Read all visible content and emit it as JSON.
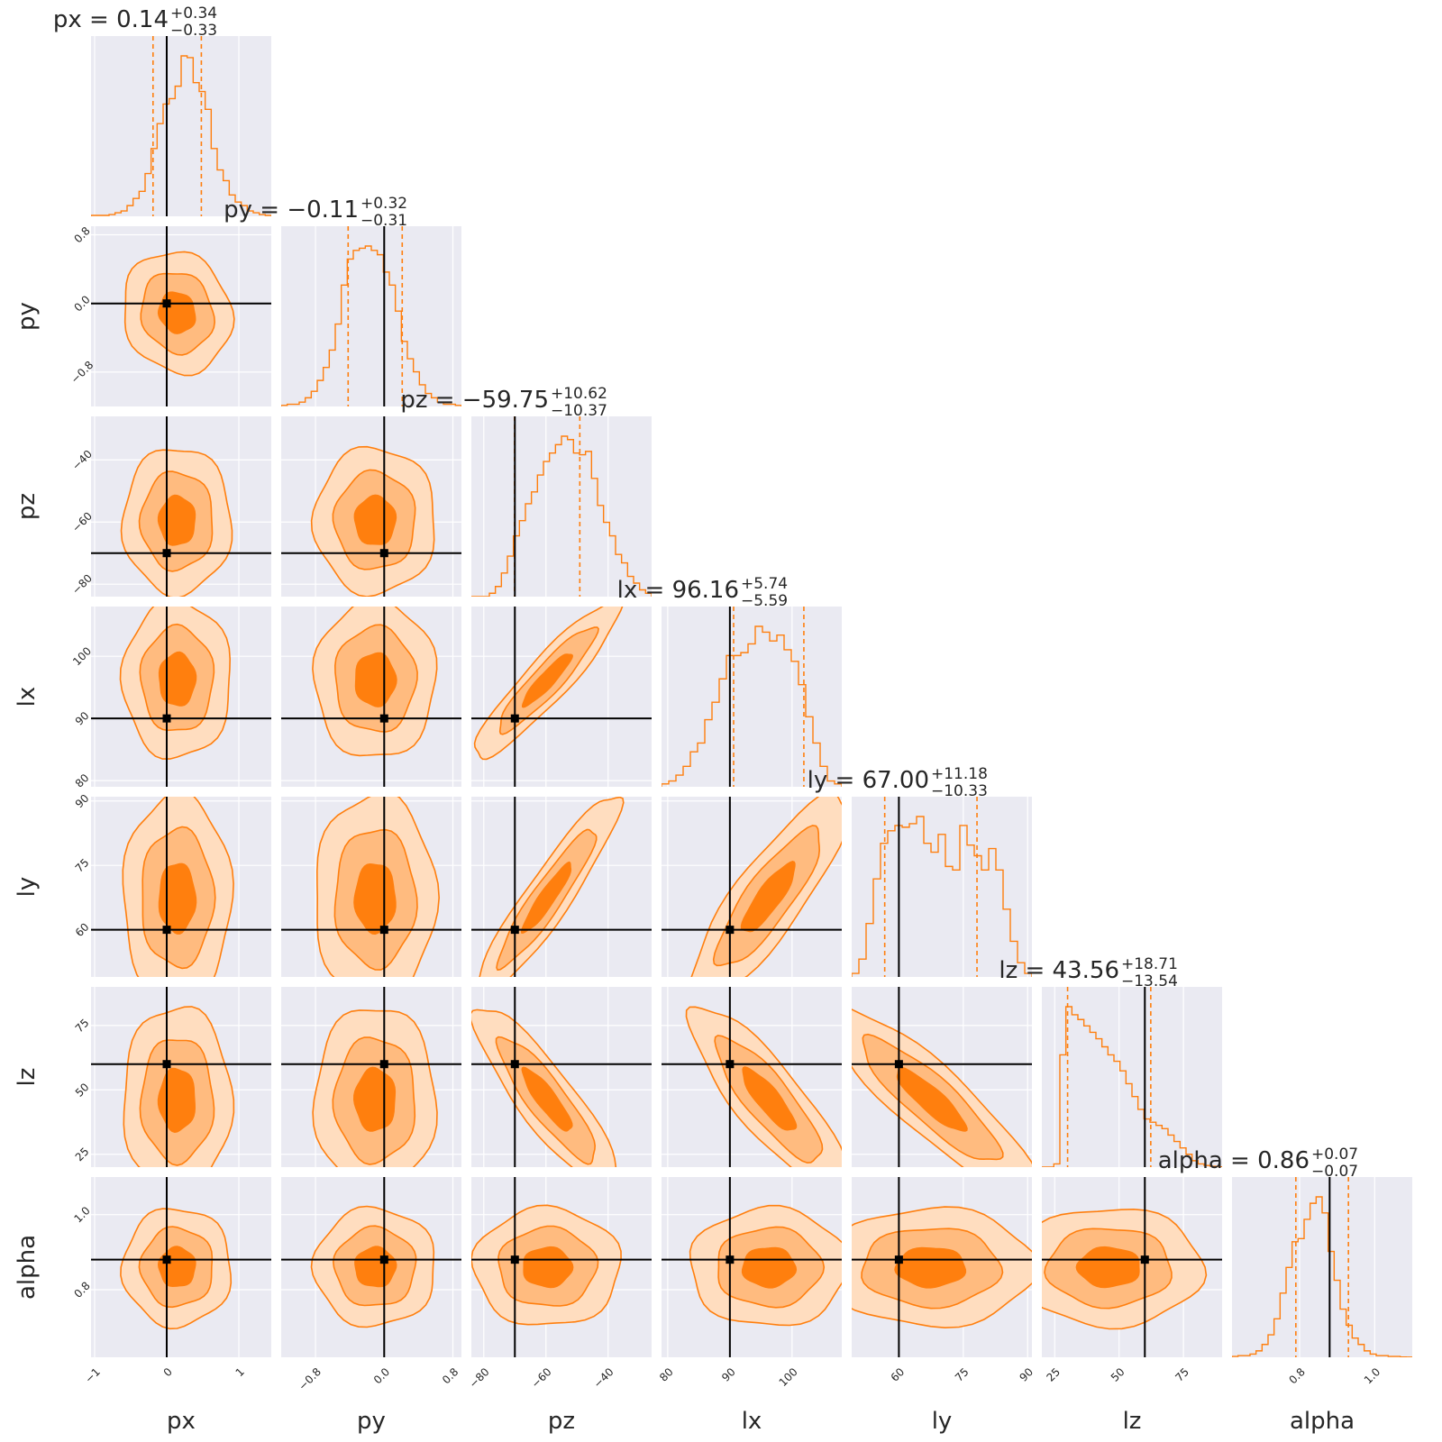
{
  "chart_data": {
    "type": "corner",
    "parameters": [
      "px",
      "py",
      "pz",
      "lx",
      "ly",
      "lz",
      "alpha"
    ],
    "ranges": {
      "px": [
        -1.05,
        1.45
      ],
      "py": [
        -1.2,
        0.9
      ],
      "pz": [
        -84,
        -26
      ],
      "lx": [
        79,
        108
      ],
      "ly": [
        49,
        91
      ],
      "lz": [
        20,
        90
      ],
      "alpha": [
        0.62,
        1.1
      ]
    },
    "truths": {
      "px": 0.0,
      "py": 0.0,
      "pz": -70,
      "lx": 90,
      "ly": 60,
      "lz": 60,
      "alpha": 0.88
    },
    "titles": [
      {
        "param": "px",
        "main": "px = 0.14",
        "plus": "+0.34",
        "minus": "−0.33"
      },
      {
        "param": "py",
        "main": "py = −0.11",
        "plus": "+0.32",
        "minus": "−0.31"
      },
      {
        "param": "pz",
        "main": "pz = −59.75",
        "plus": "+10.62",
        "minus": "−10.37"
      },
      {
        "param": "lx",
        "main": "lx = 96.16",
        "plus": "+5.74",
        "minus": "−5.59"
      },
      {
        "param": "ly",
        "main": "ly = 67.00",
        "plus": "+11.18",
        "minus": "−10.33"
      },
      {
        "param": "lz",
        "main": "lz = 43.56",
        "plus": "+18.71",
        "minus": "−13.54"
      },
      {
        "param": "alpha",
        "main": "alpha = 0.86",
        "plus": "+0.07",
        "minus": "−0.07"
      }
    ],
    "quantiles": {
      "px": [
        -0.19,
        0.48
      ],
      "py": [
        -0.42,
        0.21
      ],
      "pz": [
        -70.1,
        -49.1
      ],
      "lx": [
        90.6,
        101.9
      ],
      "ly": [
        56.7,
        78.2
      ],
      "lz": [
        30.0,
        62.3
      ],
      "alpha": [
        0.79,
        0.93
      ]
    },
    "histograms": {
      "px": [
        0.5,
        0.5,
        0.5,
        1,
        2,
        3,
        6,
        10,
        14,
        24,
        38,
        52,
        63,
        66,
        73,
        90,
        89,
        75,
        70,
        60,
        38,
        26,
        20,
        12,
        8,
        6,
        3,
        2,
        1,
        0.5
      ],
      "py": [
        0.5,
        1,
        1,
        2,
        4,
        7,
        12,
        18,
        26,
        38,
        56,
        68,
        72,
        73,
        74,
        72,
        70,
        62,
        56,
        44,
        30,
        22,
        16,
        10,
        6,
        4,
        2,
        1,
        1,
        0.5
      ],
      "pz": [
        0,
        0,
        0,
        2,
        6,
        14,
        24,
        36,
        45,
        55,
        62,
        72,
        80,
        85,
        90,
        95,
        93,
        85,
        84,
        86,
        70,
        54,
        44,
        36,
        25,
        20,
        12,
        8,
        4,
        2
      ],
      "lx": [
        2,
        4,
        8,
        14,
        24,
        30,
        46,
        58,
        74,
        90,
        90,
        92,
        98,
        110,
        106,
        100,
        104,
        94,
        86,
        70,
        48,
        30,
        14,
        4,
        2
      ],
      "ly": [
        2,
        10,
        30,
        55,
        75,
        82,
        85,
        84,
        86,
        90,
        75,
        70,
        80,
        62,
        60,
        85,
        74,
        68,
        60,
        72,
        60,
        38,
        20,
        8,
        2
      ],
      "lz": [
        0,
        0,
        2,
        70,
        100,
        95,
        92,
        88,
        84,
        80,
        75,
        70,
        66,
        60,
        52,
        44,
        36,
        30,
        28,
        26,
        24,
        20,
        16,
        12,
        8,
        4,
        2,
        1,
        0.5,
        0.2
      ],
      "alpha": [
        0.5,
        1,
        1,
        2,
        4,
        8,
        14,
        24,
        40,
        56,
        72,
        74,
        86,
        96,
        100,
        90,
        66,
        48,
        30,
        20,
        12,
        8,
        4,
        2,
        1,
        1,
        0.5,
        0.5,
        0.2,
        0.1
      ]
    },
    "ticks": {
      "px": {
        "values": [
          -1,
          0,
          1
        ],
        "labels": [
          "−1",
          "0",
          "1"
        ]
      },
      "py": {
        "values": [
          -0.8,
          0.0,
          0.8
        ],
        "labels": [
          "−0.8",
          "0.0",
          "0.8"
        ]
      },
      "pz": {
        "values": [
          -80,
          -60,
          -40
        ],
        "labels": [
          "−80",
          "−60",
          "−40"
        ]
      },
      "lx": {
        "values": [
          80,
          90,
          100
        ],
        "labels": [
          "80",
          "90",
          "100"
        ]
      },
      "ly": {
        "values": [
          60,
          75,
          90
        ],
        "labels": [
          "60",
          "75",
          "90"
        ]
      },
      "lz": {
        "values": [
          25,
          50,
          75
        ],
        "labels": [
          "25",
          "50",
          "75"
        ]
      },
      "alpha": {
        "values": [
          0.8,
          1.0
        ],
        "labels": [
          "0.8",
          "1.0"
        ]
      }
    },
    "correlations": {
      "pz|lx": 0.92,
      "pz|ly": 0.93,
      "lx|ly": 0.85,
      "pz|lz": -0.88,
      "lx|lz": -0.85,
      "ly|lz": -0.88,
      "px|py": -0.1
    },
    "contour_levels": 3,
    "colors": {
      "accent": "#ff7f0e",
      "fill_outer": "#ffddbf",
      "fill_mid": "#ffbb7f",
      "fill_inner": "#ff7f0e",
      "truth": "#000000",
      "panel": "#eaeaf2",
      "grid": "#ffffff"
    }
  }
}
